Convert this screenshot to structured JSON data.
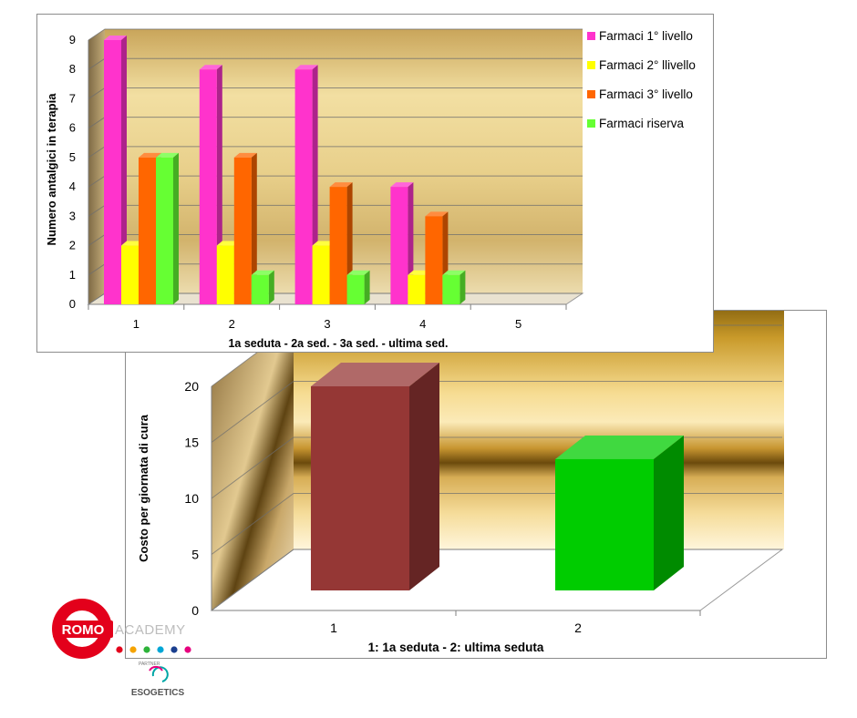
{
  "chart_data": [
    {
      "type": "bar",
      "categories": [
        "1",
        "2",
        "3",
        "4",
        "5"
      ],
      "series": [
        {
          "name": "Farmaci 1° livello",
          "values": [
            9,
            8,
            8,
            4,
            null
          ],
          "color": "#ff33cc"
        },
        {
          "name": "Farmaci 2° llivello",
          "values": [
            2,
            2,
            2,
            1,
            null
          ],
          "color": "#ffff00"
        },
        {
          "name": "Farmaci 3° livello",
          "values": [
            5,
            5,
            4,
            3,
            null
          ],
          "color": "#ff6600"
        },
        {
          "name": "Farmaci riserva",
          "values": [
            5,
            1,
            1,
            1,
            null
          ],
          "color": "#66ff33"
        }
      ],
      "xlabel": "1a seduta     -     2a sed.     -     3a sed.     -     ultima sed.",
      "ylabel": "Numero antalgici in terapia",
      "ylim": [
        0,
        9
      ],
      "yticks": [
        "0",
        "1",
        "2",
        "3",
        "4",
        "5",
        "6",
        "7",
        "8",
        "9"
      ],
      "grid": true,
      "legend": "right"
    },
    {
      "type": "bar",
      "categories": [
        "1",
        "2"
      ],
      "values": [
        20,
        13.5
      ],
      "colors": [
        "#953735",
        "#00cc00"
      ],
      "xlabel": "1:      1a seduta               -               2:      ultima seduta",
      "ylabel": "Costo per giornata di cura",
      "ylim": [
        0,
        20
      ],
      "yticks": [
        "0",
        "5",
        "10",
        "15",
        "20"
      ],
      "grid": true
    }
  ],
  "logo": {
    "brand": "ROMO",
    "suffix": "ACADEMY",
    "partner_label": "PARTNER",
    "partner_name": "ESOGETICS",
    "dot_colors": [
      "#e3001b",
      "#f5a300",
      "#2eb33a",
      "#00a6d6",
      "#1b3f8f",
      "#e6007e"
    ]
  }
}
